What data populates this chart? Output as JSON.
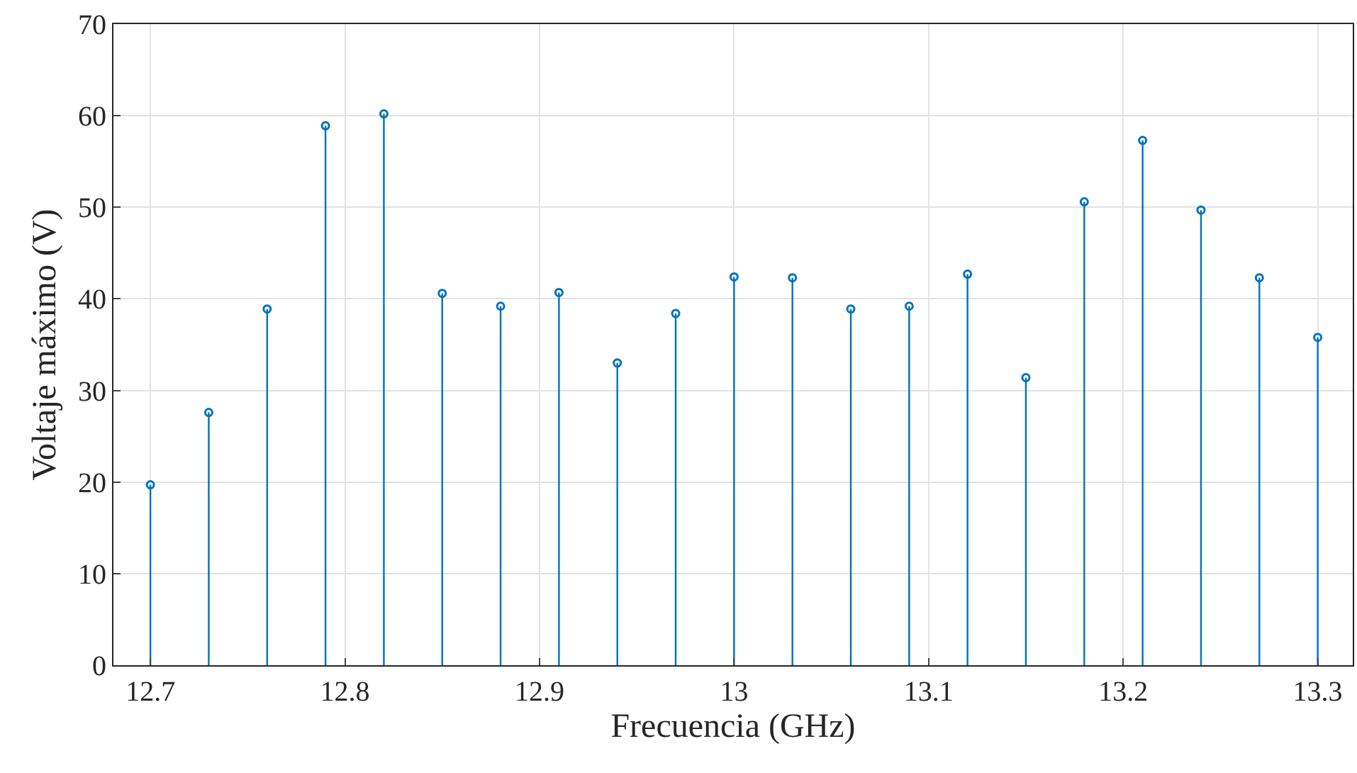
{
  "chart_data": {
    "type": "lollipop",
    "xlabel": "Frecuencia (GHz)",
    "ylabel": "Voltaje máximo (V)",
    "x": [
      12.7,
      12.73,
      12.76,
      12.79,
      12.82,
      12.85,
      12.88,
      12.91,
      12.94,
      12.97,
      13.0,
      13.03,
      13.06,
      13.09,
      13.12,
      13.15,
      13.18,
      13.21,
      13.24,
      13.27,
      13.3
    ],
    "series": [
      {
        "color": "#0072bd",
        "values": [
          19.7,
          27.6,
          38.9,
          58.9,
          60.2,
          40.6,
          39.2,
          40.7,
          33.0,
          38.4,
          42.4,
          42.3,
          38.9,
          39.2,
          42.7,
          31.4,
          50.6,
          57.3,
          49.7,
          42.3,
          35.8
        ]
      }
    ],
    "xlim": [
      12.681,
      13.318
    ],
    "xticks": [
      12.7,
      12.8,
      12.9,
      {
        "value": 13.0,
        "label": "13"
      },
      13.1,
      13.2,
      13.3
    ],
    "ylim": [
      0,
      70
    ],
    "yticks": [
      0,
      10,
      20,
      30,
      40,
      50,
      60,
      70
    ],
    "grid": true,
    "marker": "circle"
  }
}
